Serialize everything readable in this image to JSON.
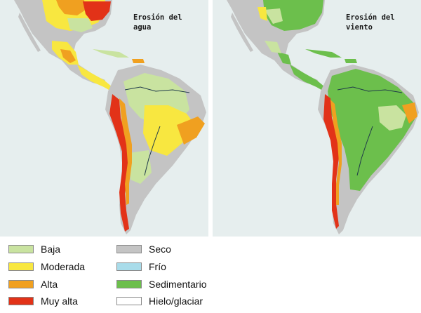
{
  "maps": [
    {
      "title": "Erosión del\nagua",
      "theme": "water"
    },
    {
      "title": "Erosión del\nviento",
      "theme": "wind"
    }
  ],
  "legend": {
    "items": [
      {
        "label": "Baja",
        "color": "#c9e3a0"
      },
      {
        "label": "Moderada",
        "color": "#f8e740"
      },
      {
        "label": "Alta",
        "color": "#f0a020"
      },
      {
        "label": "Muy alta",
        "color": "#e23218"
      },
      {
        "label": "Seco",
        "color": "#c4c4c4"
      },
      {
        "label": "Frío",
        "color": "#a9dcea"
      },
      {
        "label": "Sedimentario",
        "color": "#6cbf4c"
      },
      {
        "label": "Hielo/glaciar",
        "color": "#ffffff"
      }
    ]
  },
  "colors": {
    "ocean": "#e6eeee",
    "land_gray": "#c4c4c4",
    "river": "#1f3a4a"
  }
}
